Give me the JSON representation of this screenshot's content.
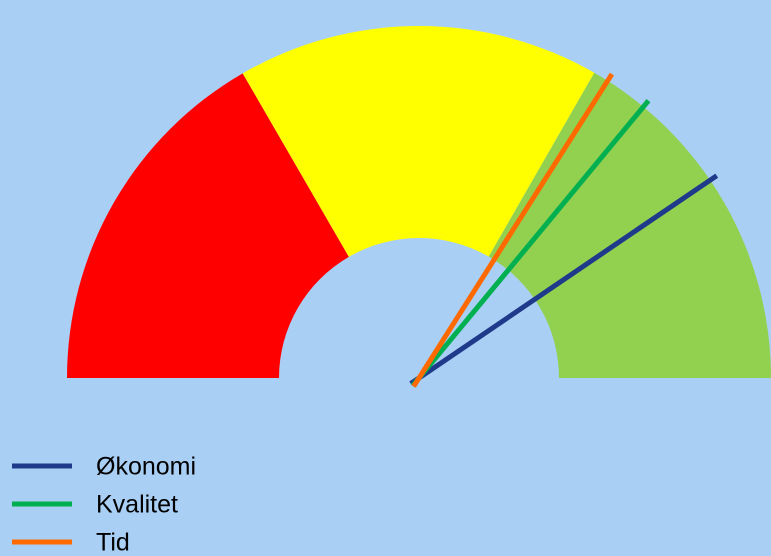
{
  "chart_data": {
    "type": "gauge",
    "ylim": [
      0,
      100
    ],
    "bands": [
      {
        "color": "#ff0000",
        "value": 33.3
      },
      {
        "color": "#ffff00",
        "value": 33.3
      },
      {
        "color": "#92d050",
        "value": 33.4
      }
    ],
    "series": [
      {
        "name": "Økonomi",
        "color": "#1f3a8a",
        "values": [
          81
        ]
      },
      {
        "name": "Kvalitet",
        "color": "#00b050",
        "values": [
          72
        ]
      },
      {
        "name": "Tid",
        "color": "#ff6a00",
        "values": [
          68
        ]
      }
    ]
  }
}
